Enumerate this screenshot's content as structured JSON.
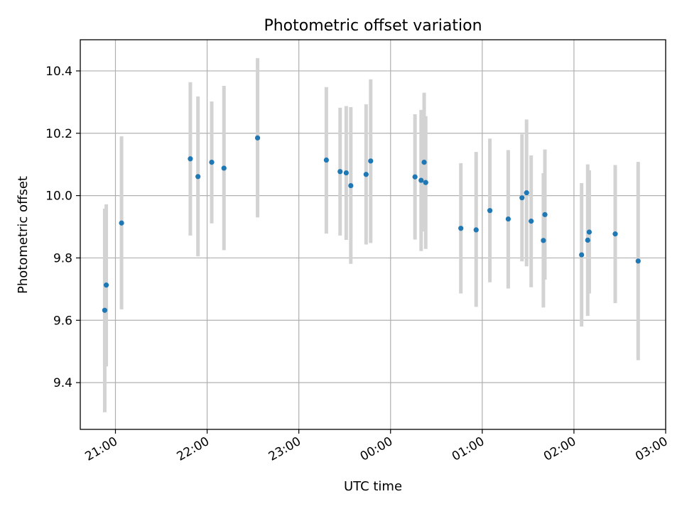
{
  "chart_data": {
    "type": "scatter",
    "title": "Photometric offset variation",
    "xlabel": "UTC time",
    "ylabel": "Photometric offset",
    "x_tick_labels": [
      "21:00",
      "22:00",
      "23:00",
      "00:00",
      "01:00",
      "02:00",
      "03:00"
    ],
    "y_ticks": [
      9.4,
      9.6,
      9.8,
      10.0,
      10.2,
      10.4
    ],
    "y_tick_labels": [
      "9.4",
      "9.6",
      "9.8",
      "10.0",
      "10.2",
      "10.4"
    ],
    "xlim": [
      "20:37",
      "03:00"
    ],
    "ylim": [
      9.25,
      10.5
    ],
    "grid": true,
    "colors": {
      "point": "#1f77b4",
      "errorbar": "#d3d3d3",
      "grid": "#b0b0b0"
    },
    "points": [
      {
        "time": "20:53",
        "y": 9.632,
        "low": 9.305,
        "high": 9.958
      },
      {
        "time": "20:54",
        "y": 9.713,
        "low": 9.452,
        "high": 9.972
      },
      {
        "time": "21:04",
        "y": 9.912,
        "low": 9.635,
        "high": 10.19
      },
      {
        "time": "21:49",
        "y": 10.118,
        "low": 9.872,
        "high": 10.364
      },
      {
        "time": "21:54",
        "y": 10.061,
        "low": 9.805,
        "high": 10.318
      },
      {
        "time": "22:03",
        "y": 10.107,
        "low": 9.911,
        "high": 10.302
      },
      {
        "time": "22:11",
        "y": 10.088,
        "low": 9.825,
        "high": 10.352
      },
      {
        "time": "22:33",
        "y": 10.185,
        "low": 9.93,
        "high": 10.441
      },
      {
        "time": "23:18",
        "y": 10.114,
        "low": 9.878,
        "high": 10.348
      },
      {
        "time": "23:27",
        "y": 10.077,
        "low": 9.872,
        "high": 10.282
      },
      {
        "time": "23:31",
        "y": 10.073,
        "low": 9.858,
        "high": 10.287
      },
      {
        "time": "23:34",
        "y": 10.032,
        "low": 9.781,
        "high": 10.284
      },
      {
        "time": "23:44",
        "y": 10.068,
        "low": 9.843,
        "high": 10.293
      },
      {
        "time": "23:47",
        "y": 10.111,
        "low": 9.848,
        "high": 10.373
      },
      {
        "time": "00:16",
        "y": 10.06,
        "low": 9.859,
        "high": 10.261
      },
      {
        "time": "00:20",
        "y": 10.049,
        "low": 9.822,
        "high": 10.275
      },
      {
        "time": "00:22",
        "y": 10.107,
        "low": 9.885,
        "high": 10.33
      },
      {
        "time": "00:23",
        "y": 10.042,
        "low": 9.829,
        "high": 10.255
      },
      {
        "time": "00:46",
        "y": 9.895,
        "low": 9.686,
        "high": 10.104
      },
      {
        "time": "00:56",
        "y": 9.89,
        "low": 9.643,
        "high": 10.14
      },
      {
        "time": "01:05",
        "y": 9.952,
        "low": 9.722,
        "high": 10.183
      },
      {
        "time": "01:17",
        "y": 9.925,
        "low": 9.702,
        "high": 10.146
      },
      {
        "time": "01:26",
        "y": 9.993,
        "low": 9.789,
        "high": 10.197
      },
      {
        "time": "01:29",
        "y": 10.009,
        "low": 9.773,
        "high": 10.244
      },
      {
        "time": "01:32",
        "y": 9.918,
        "low": 9.706,
        "high": 10.129
      },
      {
        "time": "01:40",
        "y": 9.856,
        "low": 9.641,
        "high": 10.072
      },
      {
        "time": "01:41",
        "y": 9.939,
        "low": 9.73,
        "high": 10.148
      },
      {
        "time": "02:05",
        "y": 9.81,
        "low": 9.58,
        "high": 10.04
      },
      {
        "time": "02:09",
        "y": 9.857,
        "low": 9.614,
        "high": 10.1
      },
      {
        "time": "02:10",
        "y": 9.883,
        "low": 9.686,
        "high": 10.081
      },
      {
        "time": "02:27",
        "y": 9.877,
        "low": 9.655,
        "high": 10.098
      },
      {
        "time": "02:42",
        "y": 9.79,
        "low": 9.472,
        "high": 10.108
      }
    ]
  }
}
